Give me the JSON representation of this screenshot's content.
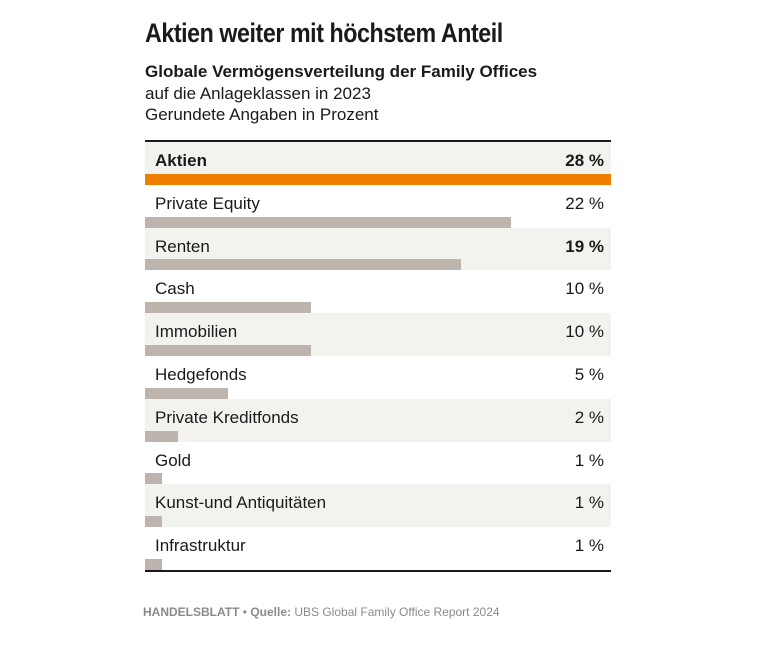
{
  "header": {
    "title": "Aktien weiter mit höchstem Anteil",
    "subtitle": "Globale Vermögensverteilung der Family Offices",
    "subtitle_line2": "auf die Anlageklassen in 2023",
    "subtitle_line3": "Gerundete Angaben in Prozent"
  },
  "colors": {
    "highlight": "#ee7f00",
    "bar": "#bdb5ad",
    "row_shade": "#f2f2ef"
  },
  "chart_data": {
    "type": "bar",
    "orientation": "horizontal",
    "title": "Aktien weiter mit höchstem Anteil",
    "subtitle": "Globale Vermögensverteilung der Family Offices auf die Anlageklassen in 2023",
    "unit": "Gerundete Angaben in Prozent",
    "categories": [
      "Aktien",
      "Private Equity",
      "Renten",
      "Cash",
      "Immobilien",
      "Hedgefonds",
      "Private Kreditfonds",
      "Gold",
      "Kunst-und Antiquitäten",
      "Infrastruktur"
    ],
    "values": [
      28,
      22,
      19,
      10,
      10,
      5,
      2,
      1,
      1,
      1
    ],
    "value_labels": [
      "28 %",
      "22 %",
      "19 %",
      "10 %",
      "10 %",
      "5 %",
      "2 %",
      "1 %",
      "1 %",
      "1 %"
    ],
    "highlighted": "Aktien",
    "xlim": [
      0,
      28
    ]
  },
  "footer": {
    "publisher": "HANDELSBLATT",
    "separator": " • ",
    "source_label": "Quelle:",
    "source": " UBS Global Family Office Report 2024"
  }
}
